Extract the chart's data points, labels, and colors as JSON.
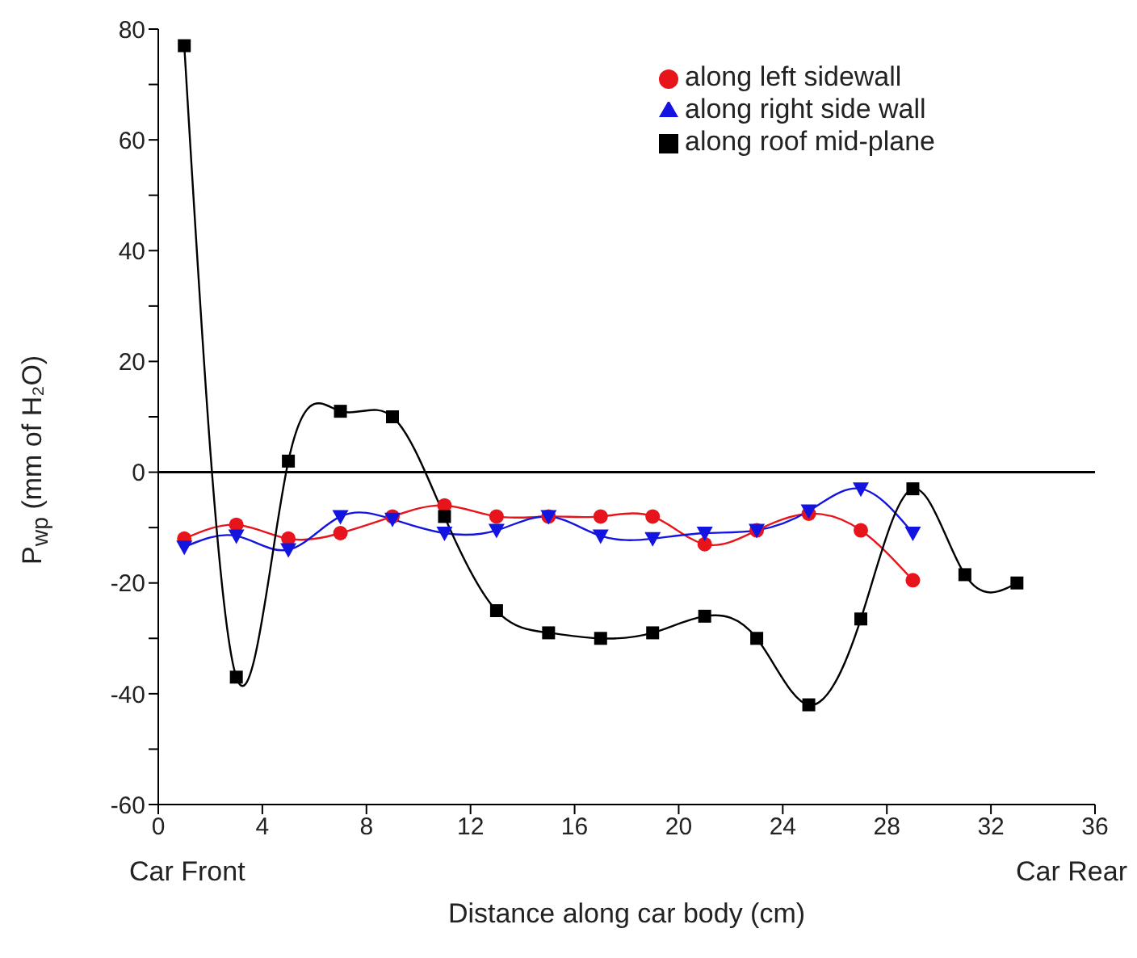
{
  "chart_data": {
    "type": "line",
    "xlabel": "Distance along car body (cm)",
    "ylabel": "P$_{wp}$ (mm of H₂O)",
    "annotations": [
      "Car Front",
      "Car Rear"
    ],
    "xlim": [
      0,
      36
    ],
    "xticks": [
      0,
      4,
      8,
      12,
      16,
      20,
      24,
      28,
      32,
      36
    ],
    "ylim": [
      -60,
      80
    ],
    "yticks": [
      -60,
      {
        "value": -50,
        "label": null
      },
      -40,
      {
        "value": -30,
        "label": null
      },
      -20,
      {
        "value": -10,
        "label": null
      },
      0,
      {
        "value": 10,
        "label": null
      },
      20,
      {
        "value": 30,
        "label": null
      },
      40,
      {
        "value": 50,
        "label": null
      },
      60,
      {
        "value": 70,
        "label": null
      },
      80
    ],
    "ref_lines": [
      {
        "axis": "y",
        "value": 0,
        "color": "#000000"
      }
    ],
    "grid": false,
    "legend": "top right",
    "series": [
      {
        "name": "along left sidewall",
        "color": "#e8141c",
        "marker": "circle",
        "x": [
          1,
          3,
          5,
          7,
          9,
          11,
          13,
          15,
          17,
          19,
          21,
          23,
          25,
          27,
          29
        ],
        "values": [
          -12,
          -9.5,
          -12,
          -11,
          -8,
          -6,
          -8,
          -8,
          -8,
          -8,
          -13,
          -10.5,
          -7.5,
          -10.5,
          -19.5
        ]
      },
      {
        "name": "along right side wall",
        "color": "#1414e0",
        "marker": "triangle",
        "x": [
          1,
          3,
          5,
          7,
          9,
          11,
          13,
          15,
          17,
          19,
          21,
          23,
          25,
          27,
          29
        ],
        "values": [
          -13.5,
          -11.5,
          -14,
          -8,
          -8.5,
          -11,
          -10.5,
          -8,
          -11.5,
          -12,
          -11,
          -10.5,
          -7,
          -3,
          -11
        ]
      },
      {
        "name": "along roof mid-plane",
        "color": "#000000",
        "marker": "square",
        "x": [
          1,
          3,
          5,
          7,
          9,
          11,
          13,
          15,
          17,
          19,
          21,
          23,
          25,
          27,
          29,
          31,
          33
        ],
        "values": [
          77,
          -37,
          2,
          11,
          10,
          -8,
          -25,
          -29,
          -30,
          -29,
          -26,
          -30,
          -42,
          -26.5,
          -3,
          -18.5,
          -20
        ]
      }
    ]
  }
}
